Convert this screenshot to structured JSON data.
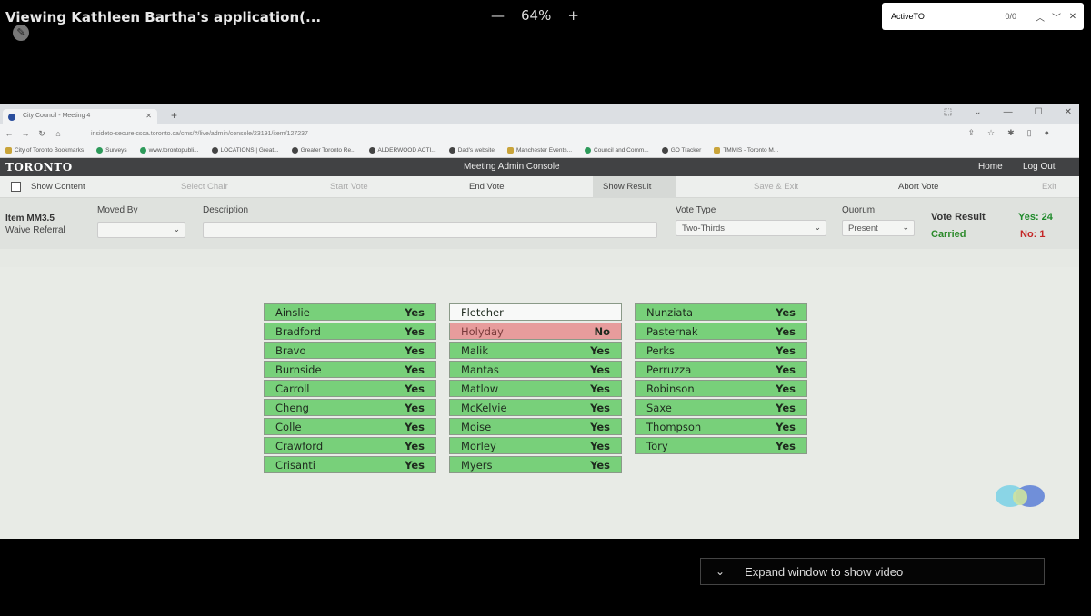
{
  "zoom_viewer": {
    "title": "Viewing Kathleen Bartha's application(...",
    "zoom_minus": "—",
    "zoom_level": "64%",
    "zoom_plus": "+",
    "expand_label": "Expand window to show video"
  },
  "find_bar": {
    "query": "ActiveTO",
    "count": "0/0"
  },
  "browser": {
    "tab_title": "City Council - Meeting 4",
    "url": "insideto-secure.csca.toronto.ca/cms/#/live/admin/console/23191/item/127237",
    "bookmarks": [
      "City of Toronto Bookmarks",
      "Surveys",
      "www.torontopubli...",
      "LOCATIONS | Great...",
      "Greater Toronto Re...",
      "ALDERWOOD ACTI...",
      "Dad's website",
      "Manchester Events...",
      "Council and Comm...",
      "GO Tracker",
      "TMMIS - Toronto M..."
    ]
  },
  "app": {
    "logo": "TORONTO",
    "title": "Meeting Admin Console",
    "home": "Home",
    "logout": "Log Out"
  },
  "toolbar": {
    "show_content": "Show Content",
    "select_chair": "Select Chair",
    "start_vote": "Start Vote",
    "end_vote": "End Vote",
    "show_result": "Show Result",
    "save_exit": "Save & Exit",
    "abort_vote": "Abort Vote",
    "exit": "Exit"
  },
  "item": {
    "number": "Item MM3.5",
    "subtitle": "Waive Referral",
    "moved_by_label": "Moved By",
    "moved_by_value": "",
    "description_label": "Description",
    "description_value": "",
    "vote_type_label": "Vote Type",
    "vote_type_value": "Two-Thirds",
    "quorum_label": "Quorum",
    "quorum_value": "Present",
    "vote_result_label": "Vote Result",
    "yes_count": "Yes: 24",
    "result": "Carried",
    "no_count": "No: 1"
  },
  "colors": {
    "yes": "#78d07a",
    "no": "#e79c9c",
    "not_voted": "#f8f9f8"
  },
  "votes": {
    "col1": [
      {
        "name": "Ainslie",
        "vote": "Yes"
      },
      {
        "name": "Bradford",
        "vote": "Yes"
      },
      {
        "name": "Bravo",
        "vote": "Yes"
      },
      {
        "name": "Burnside",
        "vote": "Yes"
      },
      {
        "name": "Carroll",
        "vote": "Yes"
      },
      {
        "name": "Cheng",
        "vote": "Yes"
      },
      {
        "name": "Colle",
        "vote": "Yes"
      },
      {
        "name": "Crawford",
        "vote": "Yes"
      },
      {
        "name": "Crisanti",
        "vote": "Yes"
      }
    ],
    "col2": [
      {
        "name": "Fletcher",
        "vote": ""
      },
      {
        "name": "Holyday",
        "vote": "No"
      },
      {
        "name": "Malik",
        "vote": "Yes"
      },
      {
        "name": "Mantas",
        "vote": "Yes"
      },
      {
        "name": "Matlow",
        "vote": "Yes"
      },
      {
        "name": "McKelvie",
        "vote": "Yes"
      },
      {
        "name": "Moise",
        "vote": "Yes"
      },
      {
        "name": "Morley",
        "vote": "Yes"
      },
      {
        "name": "Myers",
        "vote": "Yes"
      }
    ],
    "col3": [
      {
        "name": "Nunziata",
        "vote": "Yes"
      },
      {
        "name": "Pasternak",
        "vote": "Yes"
      },
      {
        "name": "Perks",
        "vote": "Yes"
      },
      {
        "name": "Perruzza",
        "vote": "Yes"
      },
      {
        "name": "Robinson",
        "vote": "Yes"
      },
      {
        "name": "Saxe",
        "vote": "Yes"
      },
      {
        "name": "Thompson",
        "vote": "Yes"
      },
      {
        "name": "Tory",
        "vote": "Yes"
      }
    ]
  }
}
